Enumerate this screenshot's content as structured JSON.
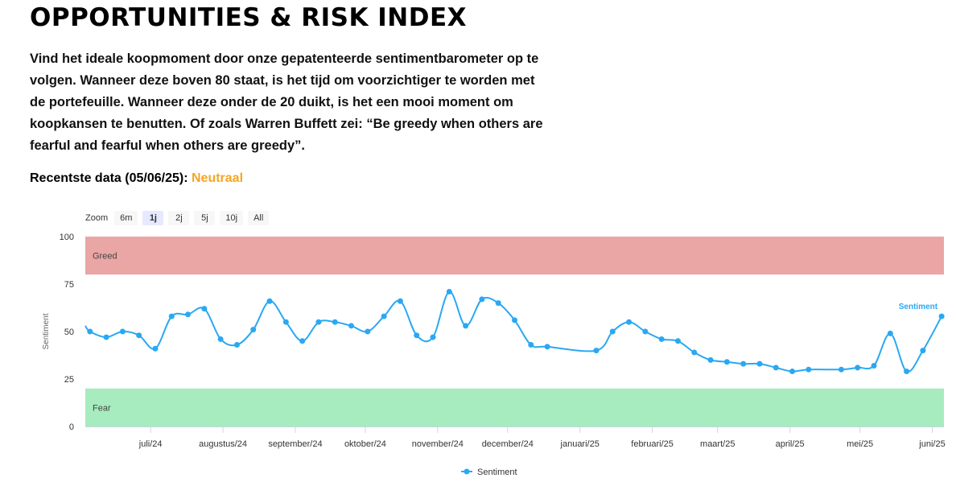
{
  "header": {
    "title": "OPPORTUNITIES & RISK INDEX",
    "intro": "Vind het ideale koopmoment door onze gepatenteerde sentimentbarometer op te volgen. Wanneer deze boven 80 staat, is het tijd om voorzichtiger te worden met de portefeuille. Wanneer deze onder de 20 duikt, is het een mooi moment om koopkansen te benutten. Of zoals Warren Buffett zei: “Be greedy when others are fearful and fearful when others are greedy”.",
    "latest_label": "Recentste data (05/06/25):",
    "latest_status": "Neutraal"
  },
  "zoom": {
    "label": "Zoom",
    "options": [
      "6m",
      "1j",
      "2j",
      "5j",
      "10j",
      "All"
    ],
    "active": "1j"
  },
  "colors": {
    "line": "#2aa8f2",
    "greed_band": "#eaa5a5",
    "fear_band": "#a6ecbe",
    "neutral_status": "#f5a623"
  },
  "chart_data": {
    "type": "line",
    "ylabel": "Sentiment",
    "ylim": [
      0,
      100
    ],
    "yticks": [
      0,
      25,
      50,
      75,
      100
    ],
    "bands": [
      {
        "label": "Greed",
        "from": 80,
        "to": 100
      },
      {
        "label": "Fear",
        "from": 0,
        "to": 20
      }
    ],
    "xticks": [
      {
        "label": "juli/24",
        "date": "2024-07-01"
      },
      {
        "label": "augustus/24",
        "date": "2024-08-01"
      },
      {
        "label": "september/24",
        "date": "2024-09-01"
      },
      {
        "label": "oktober/24",
        "date": "2024-10-01"
      },
      {
        "label": "november/24",
        "date": "2024-11-01"
      },
      {
        "label": "december/24",
        "date": "2024-12-01"
      },
      {
        "label": "januari/25",
        "date": "2025-01-01"
      },
      {
        "label": "februari/25",
        "date": "2025-02-01"
      },
      {
        "label": "maart/25",
        "date": "2025-03-01"
      },
      {
        "label": "april/25",
        "date": "2025-04-01"
      },
      {
        "label": "mei/25",
        "date": "2025-05-01"
      },
      {
        "label": "juni/25",
        "date": "2025-06-01"
      }
    ],
    "xrange": [
      "2024-06-03",
      "2025-06-06"
    ],
    "series": [
      {
        "name": "Sentiment",
        "points": [
          {
            "x": "2024-06-03",
            "y": 53
          },
          {
            "x": "2024-06-05",
            "y": 50
          },
          {
            "x": "2024-06-12",
            "y": 47
          },
          {
            "x": "2024-06-19",
            "y": 50
          },
          {
            "x": "2024-06-26",
            "y": 48
          },
          {
            "x": "2024-07-03",
            "y": 41
          },
          {
            "x": "2024-07-10",
            "y": 58
          },
          {
            "x": "2024-07-17",
            "y": 59
          },
          {
            "x": "2024-07-24",
            "y": 62
          },
          {
            "x": "2024-07-31",
            "y": 46
          },
          {
            "x": "2024-08-07",
            "y": 43
          },
          {
            "x": "2024-08-14",
            "y": 51
          },
          {
            "x": "2024-08-21",
            "y": 66
          },
          {
            "x": "2024-08-28",
            "y": 55
          },
          {
            "x": "2024-09-04",
            "y": 45
          },
          {
            "x": "2024-09-11",
            "y": 55
          },
          {
            "x": "2024-09-18",
            "y": 55
          },
          {
            "x": "2024-09-25",
            "y": 53
          },
          {
            "x": "2024-10-02",
            "y": 50
          },
          {
            "x": "2024-10-09",
            "y": 58
          },
          {
            "x": "2024-10-16",
            "y": 66
          },
          {
            "x": "2024-10-23",
            "y": 48
          },
          {
            "x": "2024-10-30",
            "y": 47
          },
          {
            "x": "2024-11-06",
            "y": 71
          },
          {
            "x": "2024-11-13",
            "y": 53
          },
          {
            "x": "2024-11-20",
            "y": 67
          },
          {
            "x": "2024-11-27",
            "y": 65
          },
          {
            "x": "2024-12-04",
            "y": 56
          },
          {
            "x": "2024-12-11",
            "y": 43
          },
          {
            "x": "2024-12-18",
            "y": 42
          },
          {
            "x": "2025-01-08",
            "y": 40
          },
          {
            "x": "2025-01-15",
            "y": 50
          },
          {
            "x": "2025-01-22",
            "y": 55
          },
          {
            "x": "2025-01-29",
            "y": 50
          },
          {
            "x": "2025-02-05",
            "y": 46
          },
          {
            "x": "2025-02-12",
            "y": 45
          },
          {
            "x": "2025-02-19",
            "y": 39
          },
          {
            "x": "2025-02-26",
            "y": 35
          },
          {
            "x": "2025-03-05",
            "y": 34
          },
          {
            "x": "2025-03-12",
            "y": 33
          },
          {
            "x": "2025-03-19",
            "y": 33
          },
          {
            "x": "2025-03-26",
            "y": 31
          },
          {
            "x": "2025-04-02",
            "y": 29
          },
          {
            "x": "2025-04-09",
            "y": 30
          },
          {
            "x": "2025-04-23",
            "y": 30
          },
          {
            "x": "2025-04-30",
            "y": 31
          },
          {
            "x": "2025-05-07",
            "y": 32
          },
          {
            "x": "2025-05-14",
            "y": 49
          },
          {
            "x": "2025-05-21",
            "y": 29
          },
          {
            "x": "2025-05-28",
            "y": 40
          },
          {
            "x": "2025-06-05",
            "y": 58
          }
        ]
      }
    ],
    "legend": {
      "position": "bottom-center",
      "entries": [
        "Sentiment"
      ]
    },
    "series_label": "Sentiment"
  }
}
